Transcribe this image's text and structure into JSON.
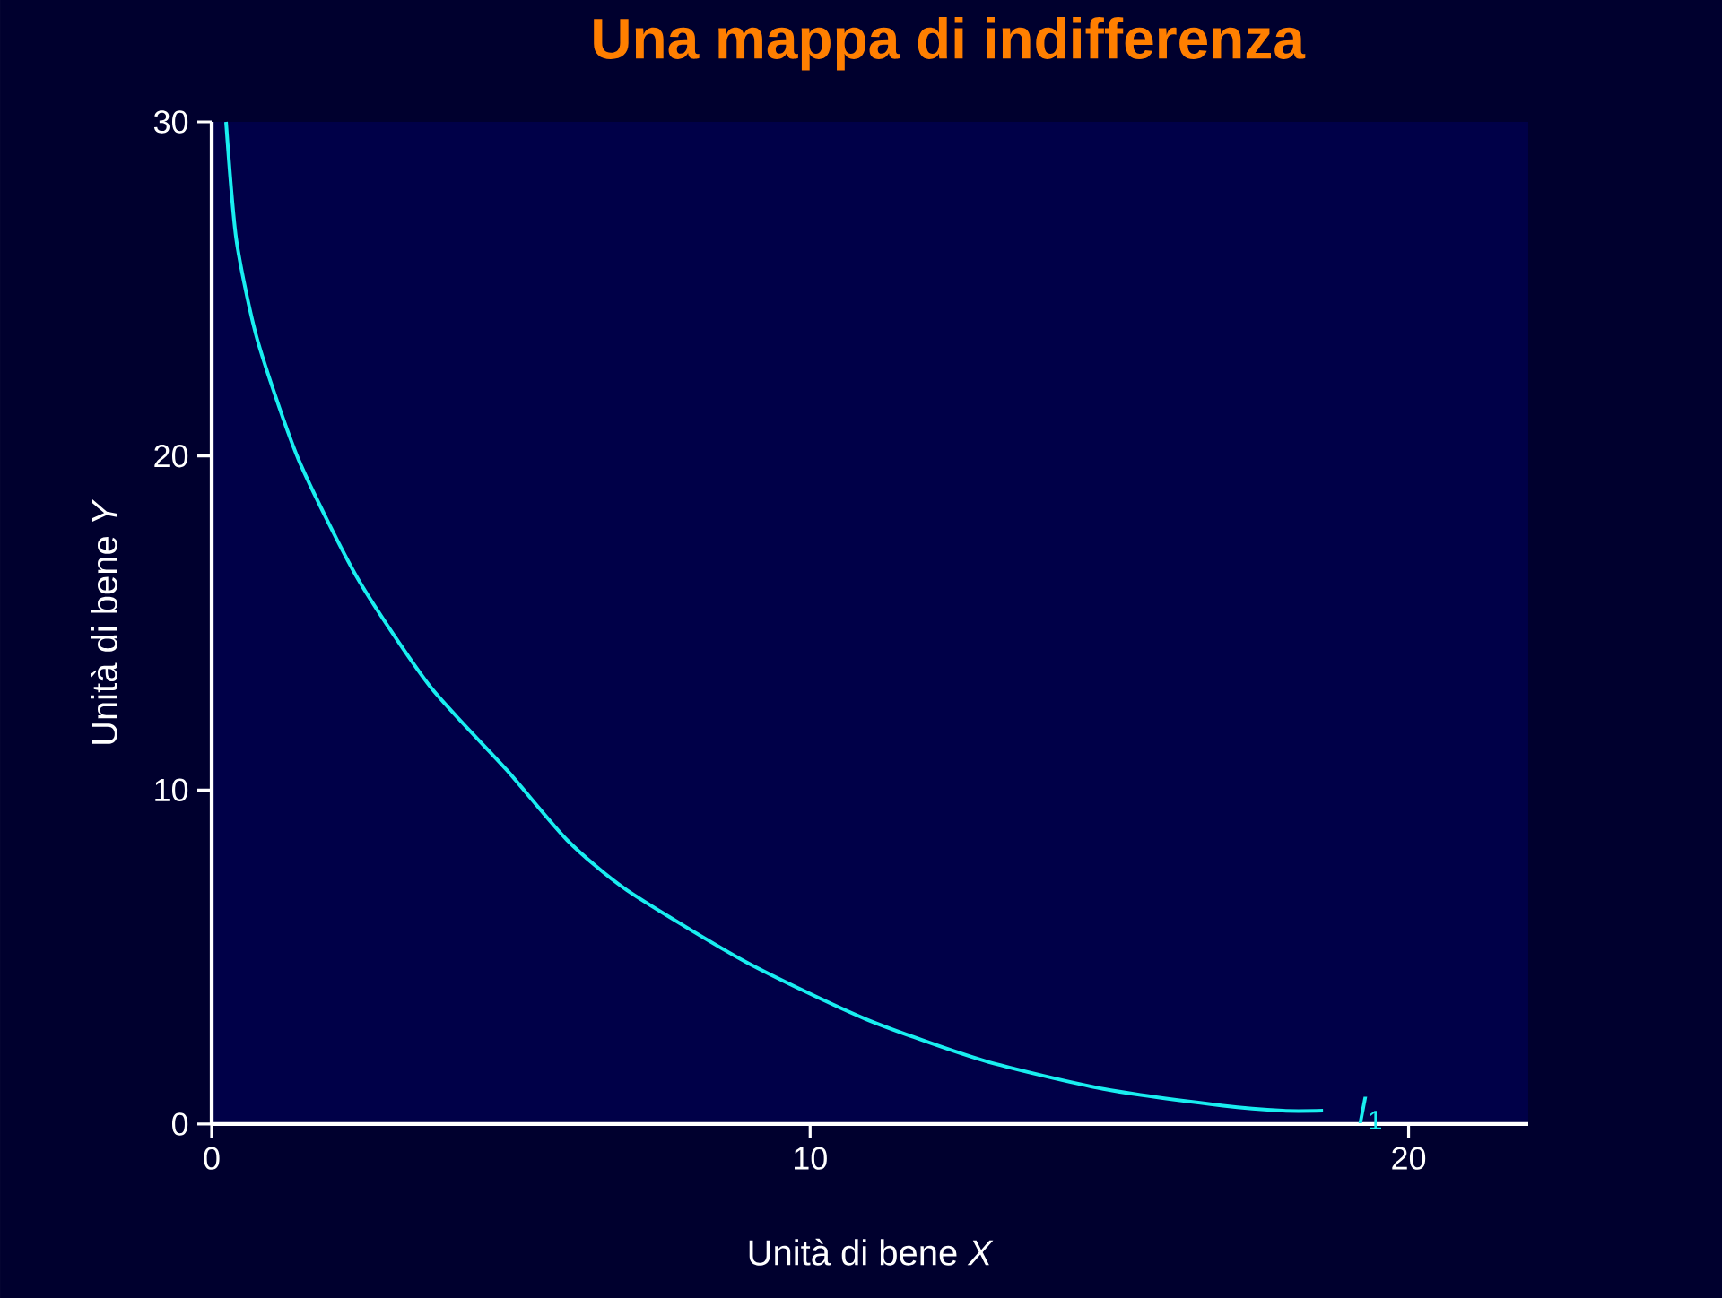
{
  "chart_data": {
    "type": "line",
    "title": "Una mappa di indifferenza",
    "xlabel": "Unità di bene *X*",
    "ylabel": "Unità di bene *Y*",
    "xlim": [
      0,
      22
    ],
    "ylim": [
      0,
      30
    ],
    "xticks": [
      0,
      10,
      20
    ],
    "yticks": [
      0,
      10,
      20,
      30
    ],
    "series": [
      {
        "color": "#19eef0",
        "x": [
          0.24,
          0.41,
          0.76,
          1.45,
          2.45,
          3.65,
          4.93,
          5.94,
          6.94,
          8.93,
          10.92,
          12.9,
          14.9,
          16.9,
          17.9,
          18.57
        ],
        "values": [
          30.0,
          26.5,
          23.5,
          19.9,
          16.3,
          13.1,
          10.6,
          8.5,
          7.0,
          4.85,
          3.15,
          1.9,
          1.05,
          0.55,
          0.4,
          0.4
        ]
      }
    ],
    "annotations": [
      "*I*$_{1}$"
    ]
  }
}
